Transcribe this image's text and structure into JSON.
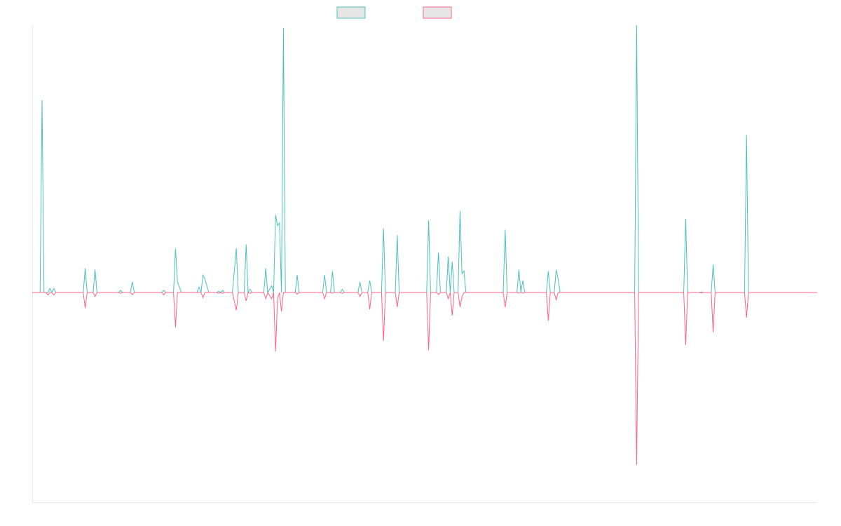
{
  "chart_data": {
    "type": "line",
    "title": "",
    "xlabel": "",
    "ylabel": "",
    "legend_position": "top-center",
    "grid": false,
    "ylim": [
      -1,
      1
    ],
    "x_count": 201,
    "series": [
      {
        "color": "#4bc0c0",
        "points": [
          [
            0,
            0
          ],
          [
            2,
            0
          ],
          [
            2.5,
            0.72
          ],
          [
            3,
            0
          ],
          [
            4,
            0
          ],
          [
            4.5,
            0.015
          ],
          [
            5,
            0
          ],
          [
            5.5,
            0.015
          ],
          [
            6,
            0
          ],
          [
            13,
            0
          ],
          [
            13.5,
            0.09
          ],
          [
            14,
            0
          ],
          [
            15.5,
            0
          ],
          [
            16,
            0.085
          ],
          [
            16.5,
            0
          ],
          [
            22,
            0
          ],
          [
            22.5,
            0.008
          ],
          [
            23,
            0
          ],
          [
            25,
            0
          ],
          [
            25.5,
            0.04
          ],
          [
            26,
            0
          ],
          [
            33,
            0
          ],
          [
            33.5,
            0.008
          ],
          [
            34,
            0
          ],
          [
            36,
            0
          ],
          [
            36.5,
            0.165
          ],
          [
            37,
            0.04
          ],
          [
            38,
            0
          ],
          [
            42,
            0
          ],
          [
            42.5,
            0.02
          ],
          [
            43,
            0
          ],
          [
            43.5,
            0.065
          ],
          [
            44,
            0.05
          ],
          [
            45,
            0
          ],
          [
            47,
            0
          ],
          [
            47.5,
            0.004
          ],
          [
            48,
            0
          ],
          [
            48.5,
            0.008
          ],
          [
            49,
            0
          ],
          [
            51,
            0
          ],
          [
            52,
            0.165
          ],
          [
            52.5,
            0
          ],
          [
            54,
            0
          ],
          [
            54.5,
            0.18
          ],
          [
            55,
            0
          ],
          [
            55.5,
            0.012
          ],
          [
            56,
            0
          ],
          [
            59,
            0
          ],
          [
            59.5,
            0.09
          ],
          [
            60,
            0
          ],
          [
            61,
            0.025
          ],
          [
            61.5,
            0
          ],
          [
            62,
            0.29
          ],
          [
            62.5,
            0.25
          ],
          [
            63,
            0.26
          ],
          [
            63.5,
            0
          ],
          [
            64,
            0.99
          ],
          [
            64.5,
            0
          ],
          [
            67,
            0
          ],
          [
            67.5,
            0.065
          ],
          [
            68,
            0
          ],
          [
            74,
            0
          ],
          [
            74.5,
            0.065
          ],
          [
            75,
            0
          ],
          [
            76,
            0
          ],
          [
            76.5,
            0.08
          ],
          [
            77,
            0
          ],
          [
            78.5,
            0
          ],
          [
            79,
            0.012
          ],
          [
            79.5,
            0
          ],
          [
            83,
            0
          ],
          [
            83.5,
            0.04
          ],
          [
            84,
            0
          ],
          [
            85.5,
            0
          ],
          [
            86,
            0.045
          ],
          [
            86.5,
            0
          ],
          [
            89,
            0
          ],
          [
            89.5,
            0.24
          ],
          [
            90,
            0
          ],
          [
            92.5,
            0
          ],
          [
            93,
            0.215
          ],
          [
            93.5,
            0
          ],
          [
            100.5,
            0
          ],
          [
            101,
            0.27
          ],
          [
            101.5,
            0
          ],
          [
            103,
            0
          ],
          [
            103.5,
            0.15
          ],
          [
            104,
            0
          ],
          [
            105.5,
            0
          ],
          [
            106,
            0.135
          ],
          [
            106.5,
            0
          ],
          [
            107,
            0.115
          ],
          [
            107.5,
            0
          ],
          [
            108.5,
            0
          ],
          [
            109,
            0.305
          ],
          [
            109.5,
            0.07
          ],
          [
            110,
            0.08
          ],
          [
            110.5,
            0
          ],
          [
            120,
            0
          ],
          [
            120.5,
            0.235
          ],
          [
            121,
            0
          ],
          [
            123.5,
            0
          ],
          [
            124,
            0.085
          ],
          [
            124.5,
            0
          ],
          [
            125,
            0.045
          ],
          [
            125.5,
            0
          ],
          [
            131,
            0
          ],
          [
            131.5,
            0.08
          ],
          [
            132,
            0
          ],
          [
            133,
            0
          ],
          [
            133.5,
            0.085
          ],
          [
            134,
            0.05
          ],
          [
            134.5,
            0
          ],
          [
            140,
            0
          ],
          [
            150,
            0
          ],
          [
            153.5,
            0
          ],
          [
            154,
            1.0
          ],
          [
            154.5,
            0
          ],
          [
            166,
            0
          ],
          [
            166.5,
            0.275
          ],
          [
            167,
            0
          ],
          [
            170,
            0
          ],
          [
            170.5,
            0.002
          ],
          [
            171,
            0
          ],
          [
            173,
            0
          ],
          [
            173.5,
            0.105
          ],
          [
            174,
            0
          ],
          [
            181.5,
            0
          ],
          [
            182,
            0.59
          ],
          [
            182.5,
            0
          ],
          [
            200,
            0
          ]
        ]
      },
      {
        "color": "#ff6384",
        "points": [
          [
            0,
            0
          ],
          [
            3.5,
            0
          ],
          [
            4,
            -0.012
          ],
          [
            4.5,
            0
          ],
          [
            5,
            0
          ],
          [
            5.5,
            -0.012
          ],
          [
            6,
            0
          ],
          [
            13,
            0
          ],
          [
            13.5,
            -0.075
          ],
          [
            14,
            0
          ],
          [
            15.5,
            0
          ],
          [
            16,
            -0.02
          ],
          [
            16.5,
            0
          ],
          [
            22,
            0
          ],
          [
            22.5,
            -0.004
          ],
          [
            23,
            0
          ],
          [
            25,
            0
          ],
          [
            25.5,
            -0.01
          ],
          [
            26,
            0
          ],
          [
            33,
            0
          ],
          [
            33.5,
            -0.012
          ],
          [
            34,
            0
          ],
          [
            36,
            0
          ],
          [
            36.5,
            -0.165
          ],
          [
            37,
            0
          ],
          [
            43,
            0
          ],
          [
            43.5,
            -0.025
          ],
          [
            44,
            0
          ],
          [
            47,
            0
          ],
          [
            47.5,
            -0.004
          ],
          [
            48,
            0
          ],
          [
            48.5,
            -0.004
          ],
          [
            49,
            0
          ],
          [
            51,
            0
          ],
          [
            52,
            -0.085
          ],
          [
            52.5,
            0
          ],
          [
            54,
            0
          ],
          [
            54.5,
            -0.04
          ],
          [
            55,
            0
          ],
          [
            55.5,
            -0.004
          ],
          [
            56,
            0
          ],
          [
            59,
            0
          ],
          [
            59.5,
            -0.03
          ],
          [
            60,
            0
          ],
          [
            61,
            -0.03
          ],
          [
            61.5,
            0
          ],
          [
            62,
            -0.28
          ],
          [
            62.5,
            -0.03
          ],
          [
            63,
            0
          ],
          [
            63.5,
            -0.09
          ],
          [
            64,
            0
          ],
          [
            67,
            0
          ],
          [
            67.5,
            -0.008
          ],
          [
            68,
            0
          ],
          [
            74,
            0
          ],
          [
            74.5,
            -0.03
          ],
          [
            75,
            0
          ],
          [
            76,
            0
          ],
          [
            76.5,
            -0.003
          ],
          [
            77,
            0
          ],
          [
            78.5,
            0
          ],
          [
            79,
            -0.004
          ],
          [
            79.5,
            0
          ],
          [
            83,
            0
          ],
          [
            83.5,
            -0.02
          ],
          [
            84,
            0
          ],
          [
            85.5,
            0
          ],
          [
            86,
            -0.08
          ],
          [
            86.5,
            0
          ],
          [
            89,
            0
          ],
          [
            89.5,
            -0.23
          ],
          [
            90,
            0
          ],
          [
            92.5,
            0
          ],
          [
            93,
            -0.07
          ],
          [
            93.5,
            0
          ],
          [
            100.5,
            0
          ],
          [
            101,
            -0.275
          ],
          [
            101.5,
            0
          ],
          [
            103,
            0
          ],
          [
            103.5,
            -0.01
          ],
          [
            104,
            0
          ],
          [
            105.5,
            0
          ],
          [
            106,
            -0.03
          ],
          [
            106.5,
            0
          ],
          [
            107,
            -0.11
          ],
          [
            107.5,
            0
          ],
          [
            108.5,
            0
          ],
          [
            109,
            -0.07
          ],
          [
            109.5,
            -0.02
          ],
          [
            110,
            0
          ],
          [
            110.5,
            0
          ],
          [
            120,
            0
          ],
          [
            120.5,
            -0.07
          ],
          [
            121,
            0
          ],
          [
            123.5,
            0
          ],
          [
            124,
            -0.003
          ],
          [
            124.5,
            0
          ],
          [
            125,
            -0.003
          ],
          [
            125.5,
            0
          ],
          [
            131,
            0
          ],
          [
            131.5,
            -0.135
          ],
          [
            132,
            0
          ],
          [
            133,
            0
          ],
          [
            133.5,
            -0.035
          ],
          [
            134,
            0
          ],
          [
            134.5,
            0
          ],
          [
            140,
            0
          ],
          [
            150,
            0
          ],
          [
            153.5,
            0
          ],
          [
            154,
            -0.82
          ],
          [
            154.5,
            0
          ],
          [
            166,
            0
          ],
          [
            166.5,
            -0.25
          ],
          [
            167,
            0
          ],
          [
            170,
            0
          ],
          [
            170.5,
            -0.002
          ],
          [
            171,
            0
          ],
          [
            173,
            0
          ],
          [
            173.5,
            -0.19
          ],
          [
            174,
            0
          ],
          [
            181.5,
            0
          ],
          [
            182,
            -0.12
          ],
          [
            182.5,
            0
          ],
          [
            200,
            0
          ]
        ]
      }
    ]
  }
}
